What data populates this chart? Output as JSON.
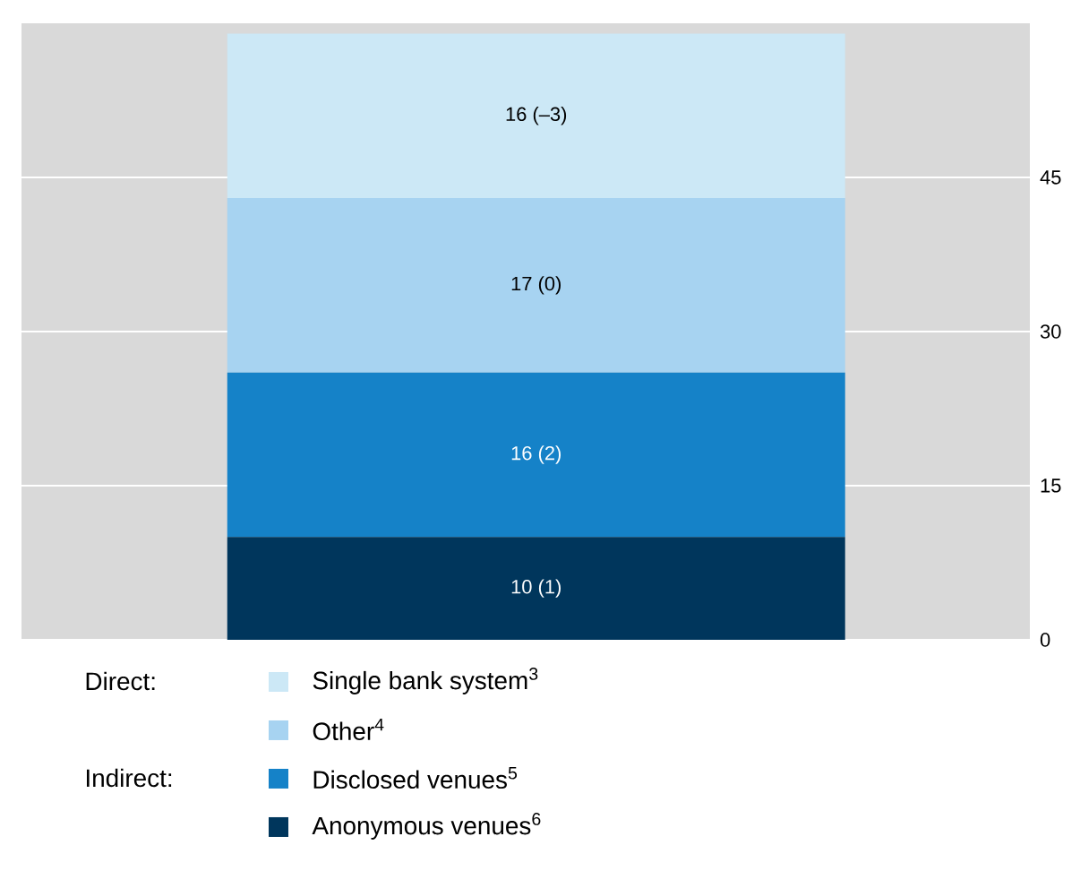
{
  "chart_data": {
    "type": "bar",
    "stacked": true,
    "categories": [
      null
    ],
    "series": [
      {
        "name": "Anonymous venues$^{6}$",
        "color": "#00365c",
        "values": [
          10
        ],
        "value_labels": [
          "10 (1)"
        ]
      },
      {
        "name": "Disclosed venues$^{5}$",
        "color": "#1582c8",
        "values": [
          16
        ],
        "value_labels": [
          "16 (2)"
        ]
      },
      {
        "name": "Other$^{4}$",
        "color": "#a7d3f1",
        "values": [
          17
        ],
        "value_labels": [
          "17 (0)"
        ]
      },
      {
        "name": "Single bank system$^{3}$",
        "color": "#cce8f6",
        "values": [
          16
        ],
        "value_labels": [
          "16 (–3)"
        ]
      }
    ],
    "ylim": [
      0,
      60
    ],
    "yticks": [
      0,
      15,
      30,
      45
    ],
    "grid": "y",
    "legend": "bottom",
    "annotations": [
      "Direct:",
      "Indirect:"
    ]
  }
}
